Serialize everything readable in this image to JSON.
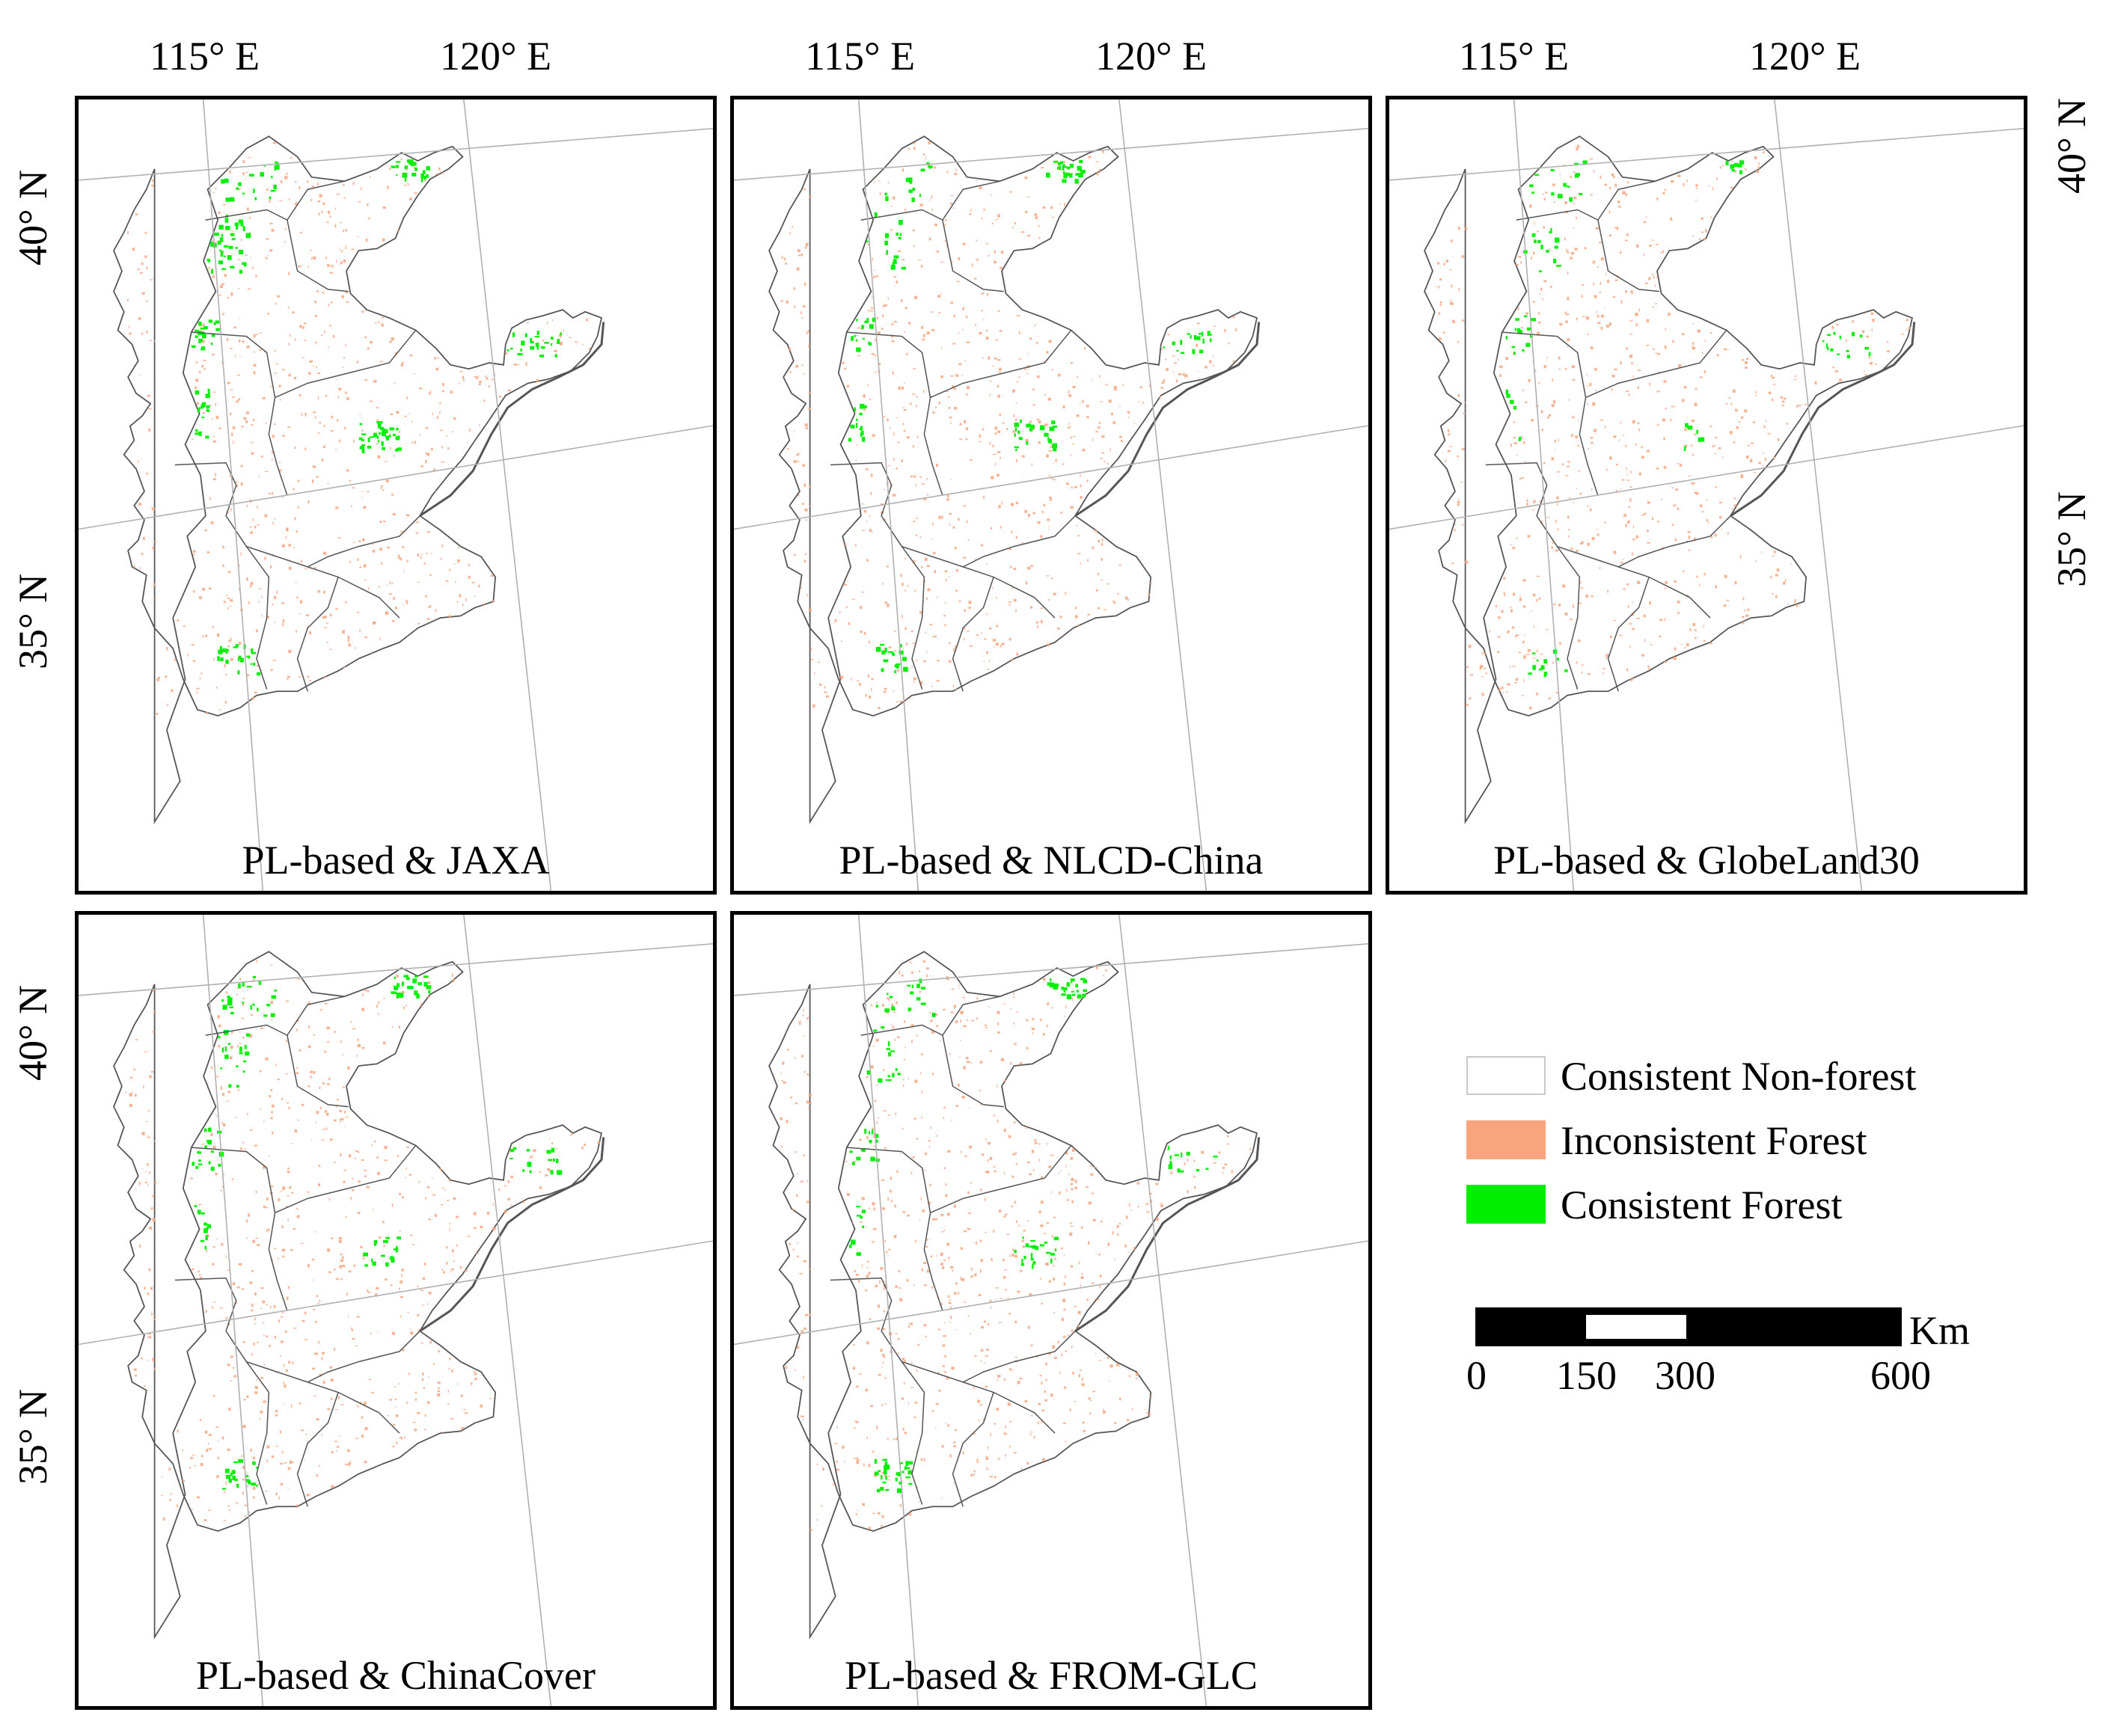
{
  "axes": {
    "lon_115": "115° E",
    "lon_120": "120° E",
    "lat_40": "40° N",
    "lat_35": "35° N"
  },
  "panels": [
    {
      "title": "PL-based & JAXA",
      "consistent_forest_level": "high"
    },
    {
      "title": "PL-based & NLCD-China",
      "consistent_forest_level": "medium"
    },
    {
      "title": "PL-based & GlobeLand30",
      "consistent_forest_level": "low"
    },
    {
      "title": "PL-based & ChinaCover",
      "consistent_forest_level": "medium"
    },
    {
      "title": "PL-based & FROM-GLC",
      "consistent_forest_level": "medium"
    }
  ],
  "legend": [
    {
      "label": "Consistent Non-forest",
      "color": "#ffffff"
    },
    {
      "label": "Inconsistent Forest",
      "color": "#f7a47f"
    },
    {
      "label": "Consistent Forest",
      "color": "#00ee00"
    }
  ],
  "scale_bar": {
    "unit": "Km",
    "ticks": [
      "0",
      "150",
      "300",
      "600"
    ]
  },
  "colors": {
    "boundary": "#555555",
    "graticule": "#b0b0b0",
    "inconsistent": "#f7a47f",
    "consistent": "#00ee00"
  }
}
